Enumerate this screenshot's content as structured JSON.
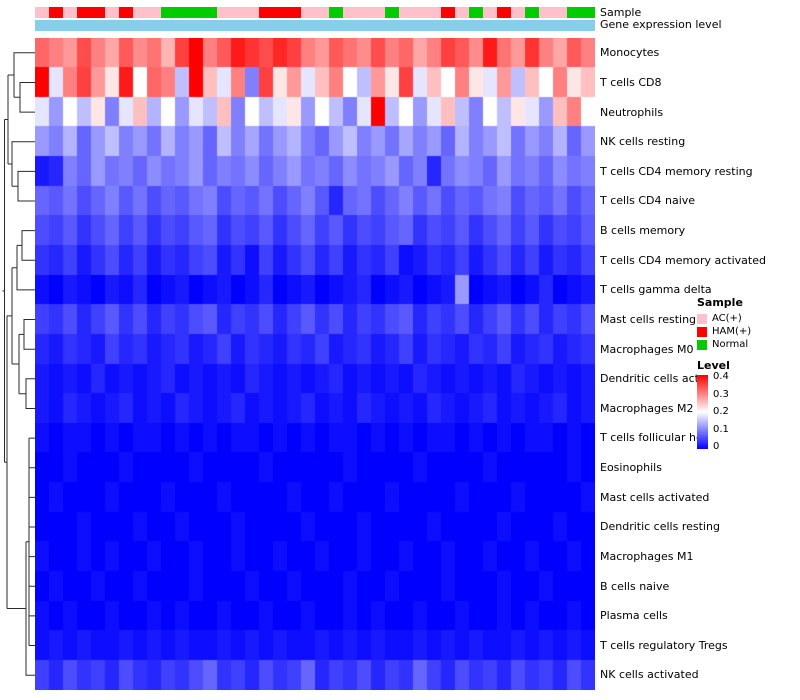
{
  "header": {
    "sample_label": "Sample",
    "expression_label": "Gene expression level"
  },
  "annotations": {
    "expression_color": "#87CEEB"
  },
  "legend": {
    "sample": {
      "title": "Sample",
      "entries": [
        {
          "key": "AC",
          "label": "AC(+)",
          "color": "#FFC0CB"
        },
        {
          "key": "HAM",
          "label": "HAM(+)",
          "color": "#FF0000"
        },
        {
          "key": "Normal",
          "label": "Normal",
          "color": "#00CC00"
        }
      ]
    },
    "level": {
      "title": "Level",
      "ticks": [
        "0.4",
        "0.3",
        "0.2",
        "0.1",
        "0"
      ],
      "gradient_top": "#FF0000",
      "gradient_mid": "#FFFFFF",
      "gradient_bottom": "#0000FF"
    }
  },
  "chart_data": {
    "type": "heatmap",
    "title": "",
    "vmin": 0,
    "vmax": 0.4,
    "colormap": [
      "#0000FF",
      "#FFFFFF",
      "#FF0000"
    ],
    "columns": 40,
    "rows": [
      "Monocytes",
      "T cells CD8",
      "Neutrophils",
      "NK cells resting",
      "T cells CD4 memory resting",
      "T cells CD4 naive",
      "B cells memory",
      "T cells CD4 memory activated",
      "T cells gamma delta",
      "Mast cells resting",
      "Macrophages M0",
      "Dendritic cells activated",
      "Macrophages M2",
      "T cells follicular helper",
      "Eosinophils",
      "Mast cells activated",
      "Dendritic cells resting",
      "Macrophages M1",
      "B cells naive",
      "Plasma cells",
      "T cells regulatory  Tregs",
      "NK cells activated"
    ],
    "sample_groups": [
      "AC",
      "HAM",
      "AC",
      "HAM",
      "HAM",
      "AC",
      "HAM",
      "AC",
      "AC",
      "Normal",
      "Normal",
      "Normal",
      "Normal",
      "AC",
      "AC",
      "AC",
      "HAM",
      "HAM",
      "HAM",
      "AC",
      "AC",
      "Normal",
      "AC",
      "AC",
      "AC",
      "Normal",
      "AC",
      "AC",
      "AC",
      "HAM",
      "AC",
      "Normal",
      "AC",
      "HAM",
      "AC",
      "Normal",
      "AC",
      "AC",
      "Normal",
      "Normal"
    ],
    "values": [
      [
        0.32,
        0.3,
        0.28,
        0.34,
        0.3,
        0.27,
        0.33,
        0.29,
        0.31,
        0.26,
        0.35,
        0.4,
        0.3,
        0.33,
        0.38,
        0.36,
        0.34,
        0.37,
        0.35,
        0.3,
        0.28,
        0.33,
        0.31,
        0.29,
        0.34,
        0.3,
        0.32,
        0.27,
        0.3,
        0.35,
        0.33,
        0.29,
        0.38,
        0.31,
        0.28,
        0.36,
        0.3,
        0.27,
        0.33,
        0.3
      ],
      [
        0.4,
        0.18,
        0.3,
        0.35,
        0.28,
        0.22,
        0.38,
        0.2,
        0.32,
        0.3,
        0.15,
        0.4,
        0.25,
        0.18,
        0.3,
        0.1,
        0.35,
        0.22,
        0.28,
        0.18,
        0.25,
        0.3,
        0.2,
        0.15,
        0.28,
        0.22,
        0.35,
        0.18,
        0.25,
        0.2,
        0.3,
        0.22,
        0.18,
        0.28,
        0.15,
        0.25,
        0.2,
        0.3,
        0.22,
        0.25
      ],
      [
        0.18,
        0.12,
        0.2,
        0.15,
        0.22,
        0.1,
        0.18,
        0.25,
        0.14,
        0.2,
        0.12,
        0.18,
        0.15,
        0.25,
        0.1,
        0.2,
        0.15,
        0.18,
        0.22,
        0.12,
        0.2,
        0.15,
        0.1,
        0.18,
        0.4,
        0.15,
        0.2,
        0.12,
        0.18,
        0.25,
        0.15,
        0.1,
        0.2,
        0.15,
        0.22,
        0.18,
        0.12,
        0.25,
        0.3,
        0.2
      ],
      [
        0.12,
        0.1,
        0.14,
        0.08,
        0.12,
        0.15,
        0.1,
        0.12,
        0.09,
        0.14,
        0.1,
        0.12,
        0.08,
        0.15,
        0.1,
        0.13,
        0.09,
        0.12,
        0.14,
        0.1,
        0.08,
        0.12,
        0.15,
        0.1,
        0.12,
        0.09,
        0.13,
        0.1,
        0.12,
        0.08,
        0.14,
        0.1,
        0.12,
        0.15,
        0.09,
        0.12,
        0.1,
        0.14,
        0.08,
        0.12
      ],
      [
        0.02,
        0.03,
        0.1,
        0.08,
        0.12,
        0.09,
        0.1,
        0.08,
        0.11,
        0.09,
        0.1,
        0.12,
        0.08,
        0.1,
        0.09,
        0.11,
        0.08,
        0.1,
        0.12,
        0.09,
        0.1,
        0.08,
        0.11,
        0.09,
        0.1,
        0.12,
        0.08,
        0.1,
        0.03,
        0.09,
        0.11,
        0.1,
        0.08,
        0.12,
        0.09,
        0.1,
        0.08,
        0.11,
        0.09,
        0.1
      ],
      [
        0.08,
        0.07,
        0.09,
        0.06,
        0.08,
        0.1,
        0.07,
        0.09,
        0.06,
        0.08,
        0.07,
        0.09,
        0.1,
        0.06,
        0.08,
        0.07,
        0.09,
        0.06,
        0.08,
        0.1,
        0.07,
        0.03,
        0.08,
        0.09,
        0.06,
        0.08,
        0.1,
        0.07,
        0.09,
        0.06,
        0.08,
        0.07,
        0.09,
        0.1,
        0.06,
        0.08,
        0.07,
        0.09,
        0.06,
        0.08
      ],
      [
        0.06,
        0.05,
        0.07,
        0.04,
        0.06,
        0.08,
        0.05,
        0.07,
        0.04,
        0.06,
        0.05,
        0.07,
        0.08,
        0.04,
        0.06,
        0.05,
        0.07,
        0.04,
        0.06,
        0.08,
        0.05,
        0.07,
        0.04,
        0.06,
        0.05,
        0.07,
        0.08,
        0.04,
        0.06,
        0.05,
        0.07,
        0.04,
        0.06,
        0.08,
        0.05,
        0.07,
        0.04,
        0.06,
        0.05,
        0.07
      ],
      [
        0.04,
        0.03,
        0.05,
        0.02,
        0.04,
        0.06,
        0.03,
        0.05,
        0.02,
        0.04,
        0.03,
        0.05,
        0.06,
        0.02,
        0.04,
        0.01,
        0.05,
        0.02,
        0.04,
        0.06,
        0.03,
        0.05,
        0.02,
        0.04,
        0.03,
        0.05,
        0.01,
        0.02,
        0.04,
        0.03,
        0.05,
        0.02,
        0.04,
        0.06,
        0.03,
        0.05,
        0.02,
        0.04,
        0.03,
        0.05
      ],
      [
        0.01,
        0,
        0.02,
        0.01,
        0,
        0.02,
        0.01,
        0.03,
        0,
        0.01,
        0.02,
        0,
        0.01,
        0.02,
        0,
        0.01,
        0.03,
        0,
        0.01,
        0.02,
        0,
        0.01,
        0.02,
        0.03,
        0,
        0.01,
        0.02,
        0,
        0.01,
        0.02,
        0.12,
        0,
        0.01,
        0.02,
        0,
        0.01,
        0.03,
        0,
        0.01,
        0.02
      ],
      [
        0.05,
        0.04,
        0.06,
        0.03,
        0.05,
        0.07,
        0.04,
        0.06,
        0.03,
        0.05,
        0.04,
        0.06,
        0.07,
        0.03,
        0.05,
        0.04,
        0.06,
        0.03,
        0.05,
        0.07,
        0.04,
        0.06,
        0.03,
        0.05,
        0.04,
        0.06,
        0.07,
        0.03,
        0.05,
        0.04,
        0.06,
        0.03,
        0.05,
        0.07,
        0.04,
        0.06,
        0.03,
        0.05,
        0.04,
        0.06
      ],
      [
        0.03,
        0.02,
        0.04,
        0.03,
        0.02,
        0.05,
        0.03,
        0.04,
        0.02,
        0.03,
        0.04,
        0.02,
        0.03,
        0.05,
        0.02,
        0.04,
        0.03,
        0.02,
        0.04,
        0.03,
        0.05,
        0.02,
        0.03,
        0.04,
        0.02,
        0.03,
        0.05,
        0.02,
        0.04,
        0.03,
        0.02,
        0.04,
        0.03,
        0.05,
        0.02,
        0.03,
        0.04,
        0.02,
        0.03,
        0.04
      ],
      [
        0.02,
        0.01,
        0.02,
        0.01,
        0.03,
        0.01,
        0.02,
        0.01,
        0.02,
        0.03,
        0.01,
        0.02,
        0.01,
        0.02,
        0.01,
        0.03,
        0.02,
        0.01,
        0.02,
        0.01,
        0.02,
        0.03,
        0.01,
        0.02,
        0.01,
        0.02,
        0.01,
        0.03,
        0.02,
        0.01,
        0.02,
        0.01,
        0.02,
        0.01,
        0.03,
        0.02,
        0.01,
        0.02,
        0.01,
        0.02
      ],
      [
        0.02,
        0.01,
        0.03,
        0.02,
        0.01,
        0.02,
        0.03,
        0.01,
        0.02,
        0.01,
        0.03,
        0.02,
        0.01,
        0.02,
        0.03,
        0.01,
        0.02,
        0.01,
        0.02,
        0.03,
        0.01,
        0.02,
        0.01,
        0.03,
        0.02,
        0.01,
        0.02,
        0.01,
        0.03,
        0.02,
        0.01,
        0.02,
        0.03,
        0.01,
        0.02,
        0.01,
        0.02,
        0.03,
        0.01,
        0.02
      ],
      [
        0.01,
        0,
        0.01,
        0.01,
        0,
        0.01,
        0,
        0.01,
        0.01,
        0,
        0.01,
        0,
        0.01,
        0,
        0.01,
        0.01,
        0,
        0.01,
        0,
        0.01,
        0,
        0.01,
        0.01,
        0,
        0.01,
        0,
        0.01,
        0,
        0.01,
        0.01,
        0,
        0.01,
        0,
        0.01,
        0,
        0.01,
        0.01,
        0,
        0.01,
        0
      ],
      [
        0,
        0,
        0.01,
        0,
        0,
        0,
        0.01,
        0,
        0,
        0,
        0,
        0.01,
        0,
        0,
        0,
        0,
        0.01,
        0,
        0,
        0,
        0,
        0,
        0.01,
        0,
        0,
        0,
        0,
        0.01,
        0,
        0,
        0,
        0,
        0.01,
        0,
        0,
        0,
        0,
        0,
        0.01,
        0
      ],
      [
        0,
        0.01,
        0,
        0,
        0,
        0.01,
        0,
        0,
        0,
        0.01,
        0,
        0,
        0,
        0.01,
        0,
        0,
        0,
        0,
        0.01,
        0,
        0,
        0.01,
        0,
        0,
        0,
        0.01,
        0,
        0,
        0,
        0,
        0.01,
        0,
        0,
        0,
        0.01,
        0,
        0,
        0,
        0,
        0.01
      ],
      [
        0,
        0,
        0,
        0.01,
        0,
        0,
        0,
        0.01,
        0,
        0,
        0.01,
        0,
        0,
        0,
        0.01,
        0,
        0,
        0,
        0,
        0.01,
        0,
        0,
        0,
        0.01,
        0,
        0,
        0,
        0,
        0.01,
        0,
        0,
        0,
        0,
        0.01,
        0,
        0,
        0,
        0.01,
        0,
        0
      ],
      [
        0.01,
        0,
        0,
        0.01,
        0,
        0.01,
        0,
        0,
        0.01,
        0,
        0,
        0.01,
        0,
        0,
        0.01,
        0,
        0,
        0.01,
        0,
        0,
        0.01,
        0,
        0,
        0.01,
        0,
        0,
        0.01,
        0,
        0,
        0.01,
        0,
        0,
        0.01,
        0,
        0,
        0.01,
        0,
        0,
        0.01,
        0
      ],
      [
        0,
        0.01,
        0,
        0,
        0.01,
        0,
        0,
        0.01,
        0,
        0,
        0,
        0.01,
        0,
        0,
        0,
        0.01,
        0,
        0,
        0.01,
        0,
        0,
        0,
        0.01,
        0,
        0,
        0.01,
        0,
        0,
        0,
        0.01,
        0,
        0,
        0,
        0.01,
        0,
        0,
        0.01,
        0,
        0,
        0
      ],
      [
        0.01,
        0,
        0.01,
        0,
        0,
        0.01,
        0,
        0,
        0.01,
        0,
        0.01,
        0,
        0,
        0.01,
        0,
        0,
        0.01,
        0,
        0,
        0.01,
        0,
        0,
        0.01,
        0,
        0.01,
        0,
        0,
        0.01,
        0,
        0,
        0.01,
        0,
        0,
        0.01,
        0,
        0.01,
        0,
        0,
        0.01,
        0
      ],
      [
        0.01,
        0.02,
        0.01,
        0.02,
        0.01,
        0.01,
        0.02,
        0.01,
        0.02,
        0.01,
        0.02,
        0.01,
        0.01,
        0.02,
        0.01,
        0.02,
        0.01,
        0.02,
        0.01,
        0.01,
        0.02,
        0.01,
        0.02,
        0.01,
        0.02,
        0.01,
        0.01,
        0.02,
        0.01,
        0.02,
        0.01,
        0.02,
        0.01,
        0.01,
        0.02,
        0.01,
        0.02,
        0.01,
        0.02,
        0.01
      ],
      [
        0.05,
        0.03,
        0.06,
        0.04,
        0.05,
        0.03,
        0.06,
        0.04,
        0.03,
        0.05,
        0.04,
        0.06,
        0.08,
        0.04,
        0.05,
        0.03,
        0.06,
        0.04,
        0.05,
        0.08,
        0.03,
        0.05,
        0.04,
        0.06,
        0.03,
        0.05,
        0.04,
        0.08,
        0.05,
        0.03,
        0.06,
        0.04,
        0.05,
        0.03,
        0.06,
        0.04,
        0.05,
        0.03,
        0.06,
        0.04
      ]
    ]
  }
}
